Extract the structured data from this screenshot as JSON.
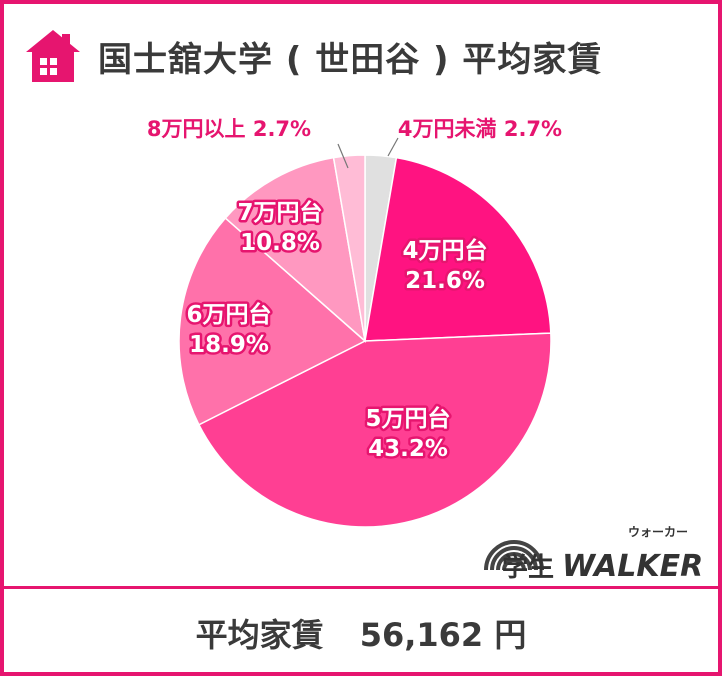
{
  "header": {
    "title": "国士舘大学 ( 世田谷 ) 平均家賃",
    "icon": "house-icon"
  },
  "chart_data": {
    "type": "pie",
    "title": "国士舘大学 ( 世田谷 ) 平均家賃",
    "slices": [
      {
        "label": "4万円未満",
        "value": 2.7,
        "display": "2.7%",
        "color": "#e0e0e0",
        "outside": true
      },
      {
        "label": "4万円台",
        "value": 21.6,
        "display": "21.6%",
        "color": "#ff1381",
        "outside": false
      },
      {
        "label": "5万円台",
        "value": 43.2,
        "display": "43.2%",
        "color": "#ff3f93",
        "outside": false
      },
      {
        "label": "6万円台",
        "value": 18.9,
        "display": "18.9%",
        "color": "#ff71aa",
        "outside": false
      },
      {
        "label": "7万円台",
        "value": 10.8,
        "display": "10.8%",
        "color": "#ff98c0",
        "outside": false
      },
      {
        "label": "8万円以上",
        "value": 2.7,
        "display": "2.7%",
        "color": "#ffbcd6",
        "outside": true
      }
    ]
  },
  "footer": {
    "label": "平均家賃",
    "value": "56,162 円"
  },
  "logo": {
    "text_jp": "学生",
    "text_en": "WALKER",
    "ruby": "ウォーカー",
    "icon": "rainbow-arc-icon"
  },
  "colors": {
    "accent": "#e6156f",
    "text": "#3a3a3a",
    "label": "#e6156f"
  }
}
